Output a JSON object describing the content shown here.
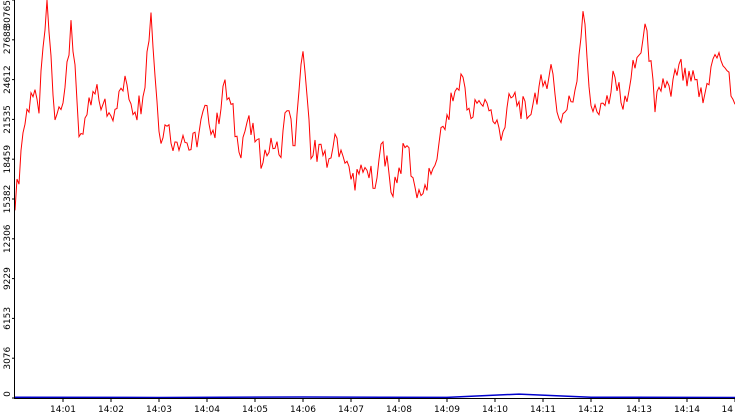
{
  "chart_data": {
    "type": "line",
    "title": "",
    "xlabel": "",
    "ylabel": "",
    "x_range": [
      "14:00:00",
      "14:15:00"
    ],
    "ylim": [
      0,
      30765
    ],
    "grid": false,
    "legend": "none",
    "y_ticks": [
      "0",
      "3076",
      "6153",
      "9229",
      "12306",
      "15382",
      "18459",
      "21535",
      "24612",
      "27688",
      "30765"
    ],
    "x_ticks": [
      {
        "label": "14:01",
        "t": "14:01:00"
      },
      {
        "label": "14:02",
        "t": "14:02:00"
      },
      {
        "label": "14:03",
        "t": "14:03:00"
      },
      {
        "label": "14:04",
        "t": "14:04:00"
      },
      {
        "label": "14:05",
        "t": "14:05:00"
      },
      {
        "label": "14:06",
        "t": "14:06:00"
      },
      {
        "label": "14:07",
        "t": "14:07:00"
      },
      {
        "label": "14:08",
        "t": "14:08:00"
      },
      {
        "label": "14:09",
        "t": "14:09:00"
      },
      {
        "label": "14:10",
        "t": "14:10:00"
      },
      {
        "label": "14:11",
        "t": "14:11:00"
      },
      {
        "label": "14:12",
        "t": "14:12:00"
      },
      {
        "label": "14:13",
        "t": "14:13:00"
      },
      {
        "label": "14:14",
        "t": "14:14:00"
      },
      {
        "label": "14",
        "t": "14:15:00"
      }
    ],
    "series": [
      {
        "color": "#ff0000",
        "x": [
          "14:00:00",
          "14:00:10",
          "14:00:20",
          "14:00:30",
          "14:00:40",
          "14:00:50",
          "14:01:00",
          "14:01:10",
          "14:01:20",
          "14:01:30",
          "14:01:40",
          "14:01:50",
          "14:02:00",
          "14:02:10",
          "14:02:20",
          "14:02:30",
          "14:02:40",
          "14:02:50",
          "14:03:00",
          "14:03:10",
          "14:03:20",
          "14:03:30",
          "14:03:40",
          "14:03:50",
          "14:04:00",
          "14:04:10",
          "14:04:20",
          "14:04:30",
          "14:04:40",
          "14:04:50",
          "14:05:00",
          "14:05:10",
          "14:05:20",
          "14:05:30",
          "14:05:40",
          "14:05:50",
          "14:06:00",
          "14:06:10",
          "14:06:20",
          "14:06:30",
          "14:06:40",
          "14:06:50",
          "14:07:00",
          "14:07:10",
          "14:07:20",
          "14:07:30",
          "14:07:40",
          "14:07:50",
          "14:08:00",
          "14:08:10",
          "14:08:20",
          "14:08:30",
          "14:08:40",
          "14:08:50",
          "14:09:00",
          "14:09:10",
          "14:09:20",
          "14:09:30",
          "14:09:40",
          "14:09:50",
          "14:10:00",
          "14:10:10",
          "14:10:20",
          "14:10:30",
          "14:10:40",
          "14:10:50",
          "14:11:00",
          "14:11:10",
          "14:11:20",
          "14:11:30",
          "14:11:40",
          "14:11:50",
          "14:12:00",
          "14:12:10",
          "14:12:20",
          "14:12:30",
          "14:12:40",
          "14:12:50",
          "14:13:00",
          "14:13:10",
          "14:13:20",
          "14:13:30",
          "14:13:40",
          "14:13:50",
          "14:14:00",
          "14:14:10",
          "14:14:20",
          "14:14:30",
          "14:14:40",
          "14:14:50",
          "14:15:00"
        ],
        "y": [
          14500,
          20500,
          23600,
          22000,
          30765,
          21500,
          22800,
          29200,
          20200,
          21900,
          23500,
          22700,
          21800,
          23700,
          24200,
          22100,
          23300,
          29800,
          20600,
          21000,
          19800,
          20300,
          19200,
          20500,
          22600,
          20100,
          24100,
          22700,
          19000,
          21300,
          19800,
          18200,
          20100,
          18800,
          22200,
          19500,
          26800,
          18500,
          19600,
          17800,
          20400,
          18700,
          16900,
          17300,
          17600,
          16200,
          19800,
          15900,
          17800,
          19500,
          16300,
          15800,
          17300,
          19700,
          21900,
          23700,
          24800,
          21600,
          23000,
          22800,
          21200,
          20600,
          23200,
          22900,
          21600,
          23600,
          24100,
          25800,
          21600,
          22300,
          23800,
          29900,
          22600,
          21900,
          23400,
          24800,
          22300,
          24700,
          26500,
          28400,
          22100,
          24700,
          23300,
          25800,
          24100,
          24600,
          22800,
          25600,
          26700,
          25300,
          22700
        ]
      },
      {
        "color": "#0000cc",
        "x": [
          "14:00:00",
          "14:03:00",
          "14:06:00",
          "14:09:00",
          "14:10:30",
          "14:12:00",
          "14:15:00"
        ],
        "y": [
          60,
          40,
          80,
          50,
          300,
          60,
          40
        ]
      }
    ]
  }
}
